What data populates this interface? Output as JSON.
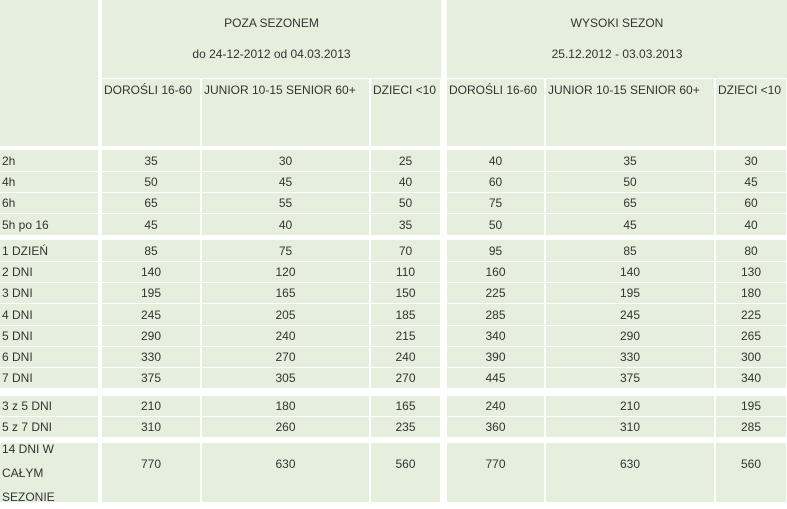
{
  "seasons": [
    {
      "title": "POZA SEZONEM",
      "dates": "do 24-12-2012 od 04.03.2013"
    },
    {
      "title": "WYSOKI SEZON",
      "dates": "25.12.2012 - 03.03.2013"
    }
  ],
  "columns": [
    "DOROŚLI 16-60",
    "JUNIOR 10-15 SENIOR 60+",
    "DZIECI <10",
    "DOROŚLI 16-60",
    "JUNIOR 10-15 SENIOR 60+",
    "DZIECI <10"
  ],
  "rows": [
    {
      "label": "2h",
      "values": [
        "35",
        "30",
        "25",
        "40",
        "35",
        "30"
      ]
    },
    {
      "label": "4h",
      "values": [
        "50",
        "45",
        "40",
        "60",
        "50",
        "45"
      ]
    },
    {
      "label": "6h",
      "values": [
        "65",
        "55",
        "50",
        "75",
        "65",
        "60"
      ]
    },
    {
      "label": "5h po 16",
      "values": [
        "45",
        "40",
        "35",
        "50",
        "45",
        "40"
      ]
    },
    {
      "label": "1 DZIEŃ",
      "values": [
        "85",
        "75",
        "70",
        "95",
        "85",
        "80"
      ]
    },
    {
      "label": "2 DNI",
      "values": [
        "140",
        "120",
        "110",
        "160",
        "140",
        "130"
      ]
    },
    {
      "label": "3 DNI",
      "values": [
        "195",
        "165",
        "150",
        "225",
        "195",
        "180"
      ]
    },
    {
      "label": "4 DNI",
      "values": [
        "245",
        "205",
        "185",
        "285",
        "245",
        "225"
      ]
    },
    {
      "label": "5 DNI",
      "values": [
        "290",
        "240",
        "215",
        "340",
        "290",
        "265"
      ]
    },
    {
      "label": "6 DNI",
      "values": [
        "330",
        "270",
        "240",
        "390",
        "330",
        "300"
      ]
    },
    {
      "label": "7 DNI",
      "values": [
        "375",
        "305",
        "270",
        "445",
        "375",
        "340"
      ]
    },
    {
      "label": "3 z 5 DNI",
      "values": [
        "210",
        "180",
        "165",
        "240",
        "210",
        "195"
      ]
    },
    {
      "label": "5 z 7 DNI",
      "values": [
        "310",
        "260",
        "235",
        "360",
        "310",
        "285"
      ]
    },
    {
      "label": "14 DNI W CAŁYM SEZONIE",
      "values": [
        "770",
        "630",
        "560",
        "770",
        "630",
        "560"
      ]
    }
  ]
}
